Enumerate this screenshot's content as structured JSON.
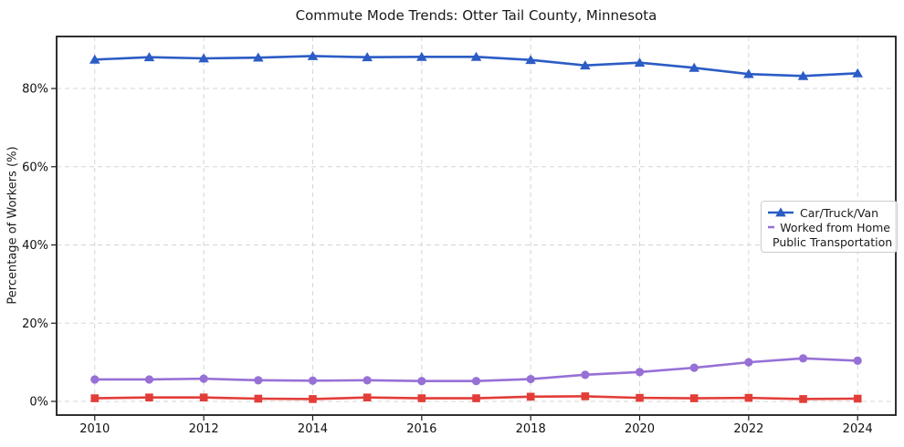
{
  "chart_data": {
    "type": "line",
    "title": "Commute Mode Trends: Otter Tail County, Minnesota",
    "xlabel": "",
    "ylabel": "Percentage of Workers (%)",
    "x": [
      2010,
      2011,
      2012,
      2013,
      2014,
      2015,
      2016,
      2017,
      2018,
      2019,
      2020,
      2021,
      2022,
      2023,
      2024
    ],
    "series": [
      {
        "name": "Car/Truck/Van",
        "marker": "triangle",
        "color": "#2c5cc5",
        "values": [
          87.4,
          88.0,
          87.7,
          87.9,
          88.3,
          88.0,
          88.1,
          88.1,
          87.3,
          85.9,
          86.6,
          85.3,
          83.7,
          83.2,
          83.9
        ]
      },
      {
        "name": "Worked from Home",
        "marker": "circle",
        "color": "#9770d6",
        "values": [
          5.6,
          5.6,
          5.8,
          5.4,
          5.3,
          5.4,
          5.2,
          5.2,
          5.7,
          6.8,
          7.5,
          8.6,
          10.0,
          11.0,
          10.4
        ]
      },
      {
        "name": "Public Transportation",
        "marker": "square",
        "color": "#e23d38",
        "values": [
          0.8,
          1.0,
          1.0,
          0.7,
          0.6,
          1.0,
          0.8,
          0.8,
          1.2,
          1.3,
          0.9,
          0.8,
          0.9,
          0.6,
          0.7
        ]
      }
    ],
    "xticks": [
      2010,
      2012,
      2014,
      2016,
      2018,
      2020,
      2022,
      2024
    ],
    "xtick_labels": [
      "2010",
      "2012",
      "2014",
      "2016",
      "2018",
      "2020",
      "2022",
      "2024"
    ],
    "yticks": [
      0,
      20,
      40,
      60,
      80
    ],
    "ytick_labels": [
      "0%",
      "20%",
      "40%",
      "60%",
      "80%"
    ],
    "xlim": [
      2009.3,
      2024.7
    ],
    "ylim": [
      -3.5,
      93.3
    ],
    "grid": true,
    "legend_position": "center right",
    "grid_color": "#d5d5d5",
    "frame_color": "#1a1a1a",
    "tick_label_color": "#111111"
  }
}
